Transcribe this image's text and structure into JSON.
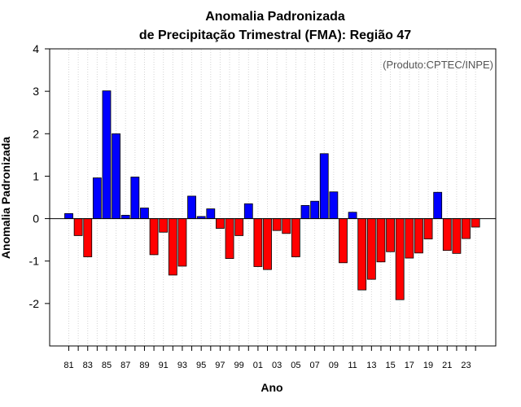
{
  "chart_data": {
    "type": "bar",
    "title_line1": "Anomalia Padronizada",
    "title_line2": "de Precipitação Trimestral (FMA): Região 47",
    "xlabel": "Ano",
    "ylabel": "Anomalia Padronizada",
    "credit": "(Produto:CPTEC/INPE)",
    "ylim": [
      -3,
      4
    ],
    "yticks": [
      -2,
      -1,
      0,
      1,
      2,
      3,
      4
    ],
    "ytick_labels": [
      "-2",
      "-1",
      "0",
      "1",
      "2",
      "3",
      "4"
    ],
    "xtick_labels": [
      "81",
      "83",
      "85",
      "87",
      "89",
      "91",
      "93",
      "95",
      "97",
      "99",
      "01",
      "03",
      "05",
      "07",
      "09",
      "11",
      "13",
      "15",
      "17",
      "19",
      "21",
      "23"
    ],
    "positive_color": "#0000ff",
    "negative_color": "#ff0000",
    "categories": [
      "1981",
      "1982",
      "1983",
      "1984",
      "1985",
      "1986",
      "1987",
      "1988",
      "1989",
      "1990",
      "1991",
      "1992",
      "1993",
      "1994",
      "1995",
      "1996",
      "1997",
      "1998",
      "1999",
      "2000",
      "2001",
      "2002",
      "2003",
      "2004",
      "2005",
      "2006",
      "2007",
      "2008",
      "2009",
      "2010",
      "2011",
      "2012",
      "2013",
      "2014",
      "2015",
      "2016",
      "2017",
      "2018",
      "2019",
      "2020",
      "2021",
      "2022",
      "2023",
      "2024"
    ],
    "values": [
      0.12,
      -0.4,
      -0.9,
      0.96,
      3.01,
      2.0,
      0.08,
      0.98,
      0.25,
      -0.85,
      -0.32,
      -1.33,
      -1.12,
      0.53,
      0.05,
      0.23,
      -0.23,
      -0.94,
      -0.4,
      0.35,
      -1.13,
      -1.2,
      -0.28,
      -0.35,
      -0.9,
      0.31,
      0.41,
      1.53,
      0.63,
      -1.04,
      0.15,
      -1.68,
      -1.43,
      -1.02,
      -0.78,
      -1.91,
      -0.93,
      -0.81,
      -0.48,
      0.62,
      -0.75,
      -0.82,
      -0.47,
      -0.2
    ]
  }
}
